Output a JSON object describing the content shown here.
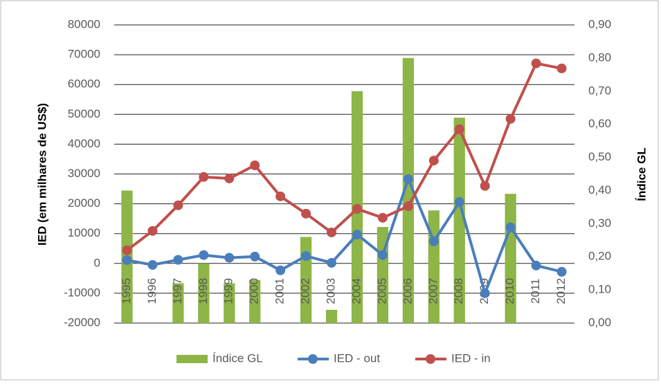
{
  "chart_data": {
    "type": "combo",
    "y_label": "IED (em milhares de US$)",
    "y2_label": "Índice GL",
    "categories": [
      "1995",
      "1996",
      "1997",
      "1998",
      "1999",
      "2000",
      "2001",
      "2002",
      "2003",
      "2004",
      "2005",
      "2006",
      "2007",
      "2008",
      "2009",
      "2010",
      "2011",
      "2012"
    ],
    "series": [
      {
        "name": "Índice GL",
        "type": "bar",
        "axis": "y2",
        "color": "#8db547",
        "values": [
          0.4,
          null,
          0.12,
          0.18,
          0.12,
          0.13,
          null,
          0.26,
          0.04,
          0.7,
          0.29,
          0.8,
          0.34,
          0.62,
          null,
          0.39,
          null,
          null
        ]
      },
      {
        "name": "IED - out",
        "type": "line",
        "color": "#4a7ebb",
        "values": [
          1100,
          -500,
          1200,
          2800,
          1900,
          2300,
          -2300,
          2500,
          200,
          9700,
          2800,
          28300,
          7400,
          20600,
          -10000,
          12100,
          -700,
          -2800
        ]
      },
      {
        "name": "IED - in",
        "type": "line",
        "color": "#c0504d",
        "values": [
          4400,
          10900,
          19500,
          29000,
          28500,
          32900,
          22500,
          16700,
          10400,
          18300,
          15300,
          19200,
          34500,
          45000,
          26000,
          48500,
          67100,
          65400
        ]
      }
    ],
    "ylim": [
      -20000,
      80000
    ],
    "yticks": [
      -20000,
      -10000,
      0,
      10000,
      20000,
      30000,
      40000,
      50000,
      60000,
      70000,
      80000
    ],
    "y2lim": [
      0,
      0.9
    ],
    "y2ticks": [
      {
        "value": 0,
        "label": "0,00"
      },
      {
        "value": 0.1,
        "label": "0,10"
      },
      {
        "value": 0.2,
        "label": "0,20"
      },
      {
        "value": 0.3,
        "label": "0,30"
      },
      {
        "value": 0.4,
        "label": "0,40"
      },
      {
        "value": 0.5,
        "label": "0,50"
      },
      {
        "value": 0.6,
        "label": "0,60"
      },
      {
        "value": 0.7,
        "label": "0,70"
      },
      {
        "value": 0.8,
        "label": "0,80"
      },
      {
        "value": 0.9,
        "label": "0,90"
      }
    ],
    "grid": true,
    "legend": "bottom"
  }
}
